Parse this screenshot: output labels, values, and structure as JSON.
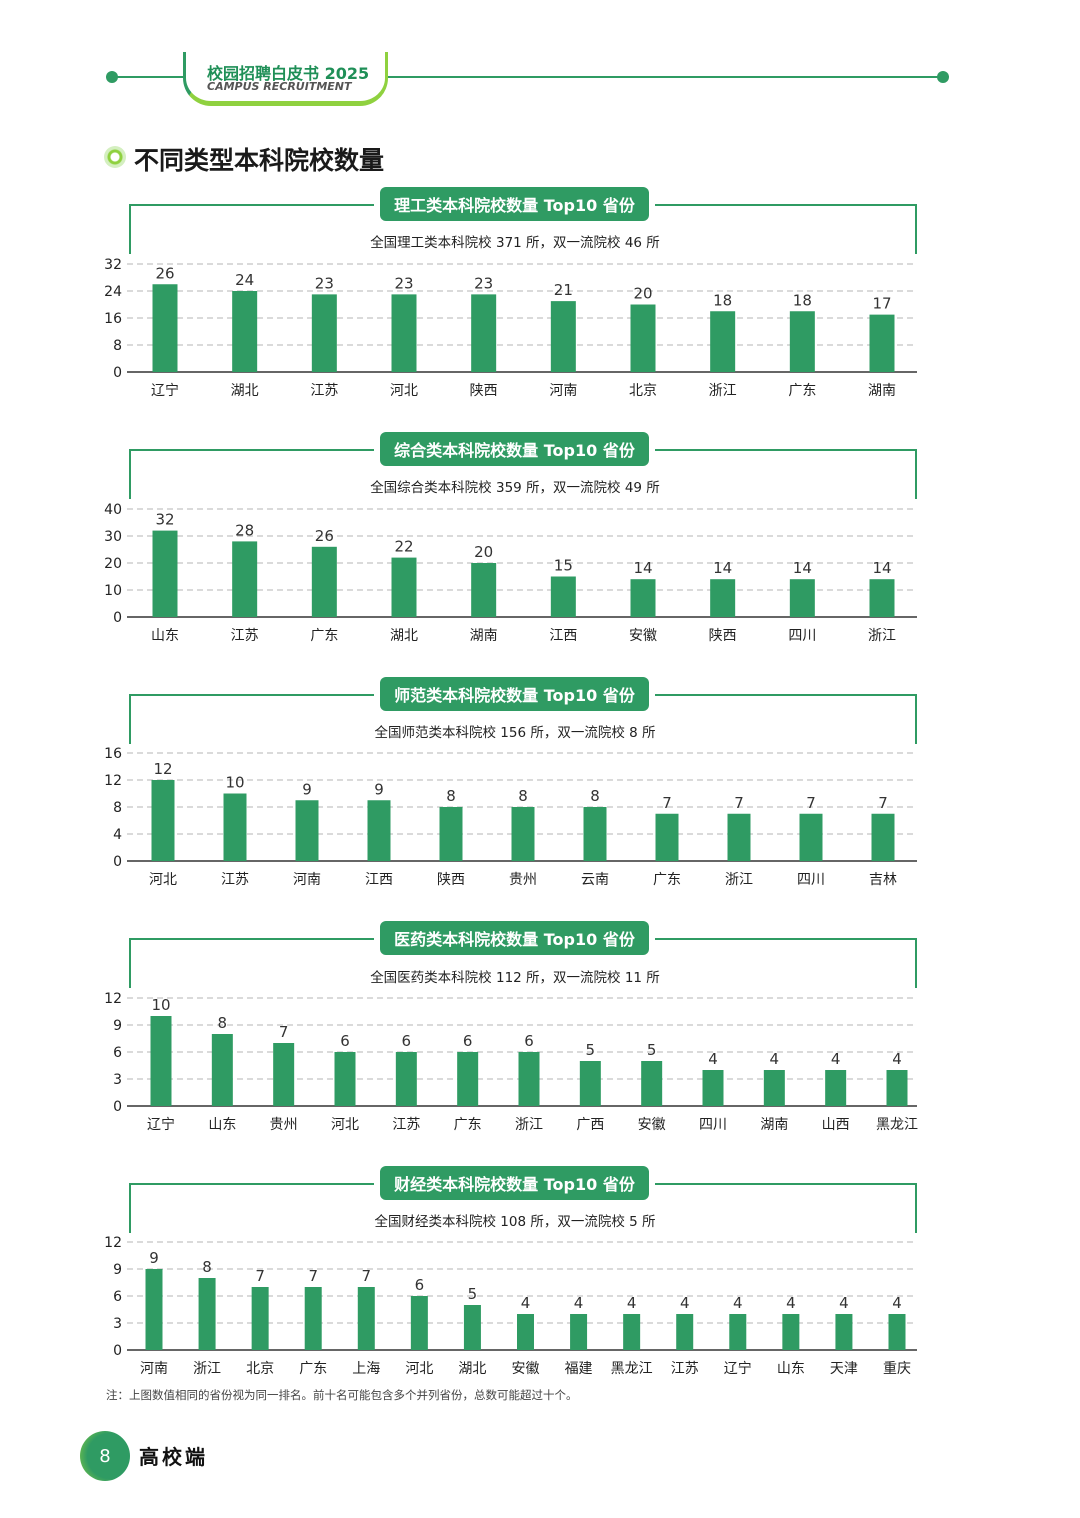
{
  "header": {
    "badge_title": "校园招聘白皮书 2025",
    "badge_subtitle": "CAMPUS RECRUITMENT",
    "accent_color": "#2f9b63",
    "accent_light": "#8fd13f"
  },
  "section": {
    "title": "不同类型本科院校数量",
    "icon": "ring-icon"
  },
  "chart_data": [
    {
      "type": "bar",
      "title": "理工类本科院校数量 Top10 省份",
      "subtitle": "全国理工类本科院校 371 所，双一流院校 46 所",
      "categories": [
        "辽宁",
        "湖北",
        "江苏",
        "河北",
        "陕西",
        "河南",
        "北京",
        "浙江",
        "广东",
        "湖南"
      ],
      "values": [
        26,
        24,
        23,
        23,
        23,
        21,
        20,
        18,
        18,
        17
      ],
      "yticks": [
        0,
        8,
        16,
        24,
        32
      ],
      "ylim": [
        0,
        32
      ],
      "grid": true,
      "bar_color": "#2f9b63"
    },
    {
      "type": "bar",
      "title": "综合类本科院校数量 Top10 省份",
      "subtitle": "全国综合类本科院校 359 所，双一流院校 49 所",
      "categories": [
        "山东",
        "江苏",
        "广东",
        "湖北",
        "湖南",
        "江西",
        "安徽",
        "陕西",
        "四川",
        "浙江"
      ],
      "values": [
        32,
        28,
        26,
        22,
        20,
        15,
        14,
        14,
        14,
        14
      ],
      "yticks": [
        0,
        10,
        20,
        30,
        40
      ],
      "ylim": [
        0,
        40
      ],
      "grid": true,
      "bar_color": "#2f9b63"
    },
    {
      "type": "bar",
      "title": "师范类本科院校数量 Top10 省份",
      "subtitle": "全国师范类本科院校 156 所，双一流院校 8 所",
      "categories": [
        "河北",
        "江苏",
        "河南",
        "江西",
        "陕西",
        "贵州",
        "云南",
        "广东",
        "浙江",
        "四川",
        "吉林"
      ],
      "values": [
        12,
        10,
        9,
        9,
        8,
        8,
        8,
        7,
        7,
        7,
        7
      ],
      "yticks": [
        0,
        4,
        8,
        12,
        16
      ],
      "ylim": [
        0,
        16
      ],
      "grid": true,
      "bar_color": "#2f9b63"
    },
    {
      "type": "bar",
      "title": "医药类本科院校数量 Top10 省份",
      "subtitle": "全国医药类本科院校 112 所，双一流院校 11 所",
      "categories": [
        "辽宁",
        "山东",
        "贵州",
        "河北",
        "江苏",
        "广东",
        "浙江",
        "广西",
        "安徽",
        "四川",
        "湖南",
        "山西",
        "黑龙江"
      ],
      "values": [
        10,
        8,
        7,
        6,
        6,
        6,
        6,
        5,
        5,
        4,
        4,
        4,
        4
      ],
      "yticks": [
        0,
        3,
        6,
        9,
        12
      ],
      "ylim": [
        0,
        12
      ],
      "grid": true,
      "bar_color": "#2f9b63"
    },
    {
      "type": "bar",
      "title": "财经类本科院校数量 Top10 省份",
      "subtitle": "全国财经类本科院校 108 所，双一流院校 5 所",
      "categories": [
        "河南",
        "浙江",
        "北京",
        "广东",
        "上海",
        "河北",
        "湖北",
        "安徽",
        "福建",
        "黑龙江",
        "江苏",
        "辽宁",
        "山东",
        "天津",
        "重庆"
      ],
      "values": [
        9,
        8,
        7,
        7,
        7,
        6,
        5,
        4,
        4,
        4,
        4,
        4,
        4,
        4,
        4
      ],
      "yticks": [
        0,
        3,
        6,
        9,
        12
      ],
      "ylim": [
        0,
        12
      ],
      "grid": true,
      "bar_color": "#2f9b63"
    }
  ],
  "note": "注：上图数值相同的省份视为同一排名。前十名可能包含多个并列省份，总数可能超过十个。",
  "footer": {
    "page_number": "8",
    "label": "高校端"
  }
}
